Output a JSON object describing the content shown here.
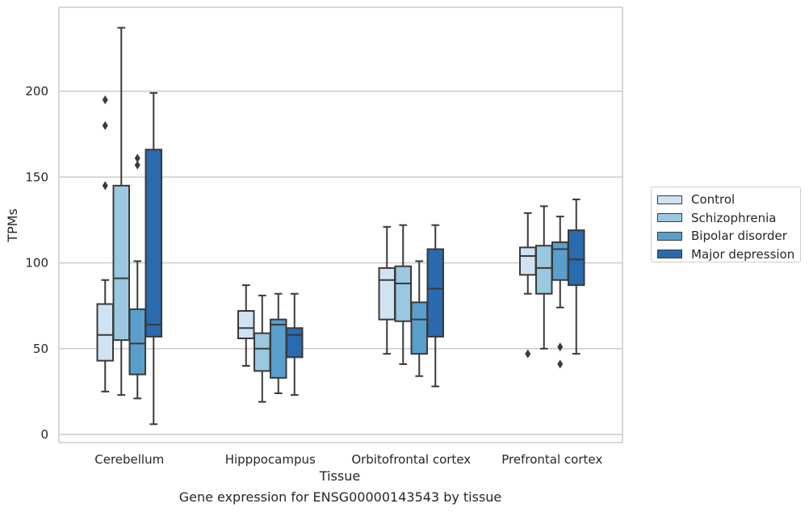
{
  "caption": "Gene expression for ENSG00000143543 by tissue",
  "chart_data": {
    "type": "box",
    "title": "",
    "xlabel": "Tissue",
    "ylabel": "TPMs",
    "ylim": [
      -5,
      250
    ],
    "yticks": [
      0,
      50,
      100,
      150,
      200
    ],
    "grid": "horizontal",
    "legend_position": "right",
    "categories": [
      "Cerebellum",
      "Hipppocampus",
      "Orbitofrontal cortex",
      "Prefrontal cortex"
    ],
    "series": [
      {
        "name": "Control",
        "color": "#d1e2f2",
        "boxes": [
          {
            "whisker_low": 25,
            "q1": 43,
            "median": 58,
            "q3": 76,
            "whisker_high": 90,
            "outliers": [
              195,
              180,
              145
            ]
          },
          {
            "whisker_low": 40,
            "q1": 56,
            "median": 62,
            "q3": 72,
            "whisker_high": 87,
            "outliers": []
          },
          {
            "whisker_low": 47,
            "q1": 67,
            "median": 90,
            "q3": 97,
            "whisker_high": 121,
            "outliers": []
          },
          {
            "whisker_low": 82,
            "q1": 93,
            "median": 104,
            "q3": 109,
            "whisker_high": 129,
            "outliers": [
              47
            ]
          }
        ]
      },
      {
        "name": "Schizophrenia",
        "color": "#9ac8e0",
        "boxes": [
          {
            "whisker_low": 23,
            "q1": 55,
            "median": 91,
            "q3": 145,
            "whisker_high": 237,
            "outliers": []
          },
          {
            "whisker_low": 19,
            "q1": 37,
            "median": 50,
            "q3": 59,
            "whisker_high": 81,
            "outliers": []
          },
          {
            "whisker_low": 41,
            "q1": 66,
            "median": 88,
            "q3": 98,
            "whisker_high": 122,
            "outliers": []
          },
          {
            "whisker_low": 50,
            "q1": 82,
            "median": 97,
            "q3": 110,
            "whisker_high": 133,
            "outliers": []
          }
        ]
      },
      {
        "name": "Bipolar disorder",
        "color": "#5a9ecc",
        "boxes": [
          {
            "whisker_low": 21,
            "q1": 35,
            "median": 53,
            "q3": 73,
            "whisker_high": 101,
            "outliers": [
              161,
              157
            ]
          },
          {
            "whisker_low": 24,
            "q1": 33,
            "median": 64,
            "q3": 67,
            "whisker_high": 82,
            "outliers": []
          },
          {
            "whisker_low": 34,
            "q1": 47,
            "median": 67,
            "q3": 77,
            "whisker_high": 101,
            "outliers": []
          },
          {
            "whisker_low": 74,
            "q1": 90,
            "median": 108,
            "q3": 112,
            "whisker_high": 127,
            "outliers": [
              51,
              41
            ]
          }
        ]
      },
      {
        "name": "Major depression",
        "color": "#2a6aae",
        "boxes": [
          {
            "whisker_low": 6,
            "q1": 57,
            "median": 64,
            "q3": 166,
            "whisker_high": 199,
            "outliers": []
          },
          {
            "whisker_low": 23,
            "q1": 45,
            "median": 58,
            "q3": 62,
            "whisker_high": 82,
            "outliers": []
          },
          {
            "whisker_low": 28,
            "q1": 57,
            "median": 85,
            "q3": 108,
            "whisker_high": 122,
            "outliers": []
          },
          {
            "whisker_low": 47,
            "q1": 87,
            "median": 102,
            "q3": 119,
            "whisker_high": 137,
            "outliers": []
          }
        ]
      }
    ]
  }
}
